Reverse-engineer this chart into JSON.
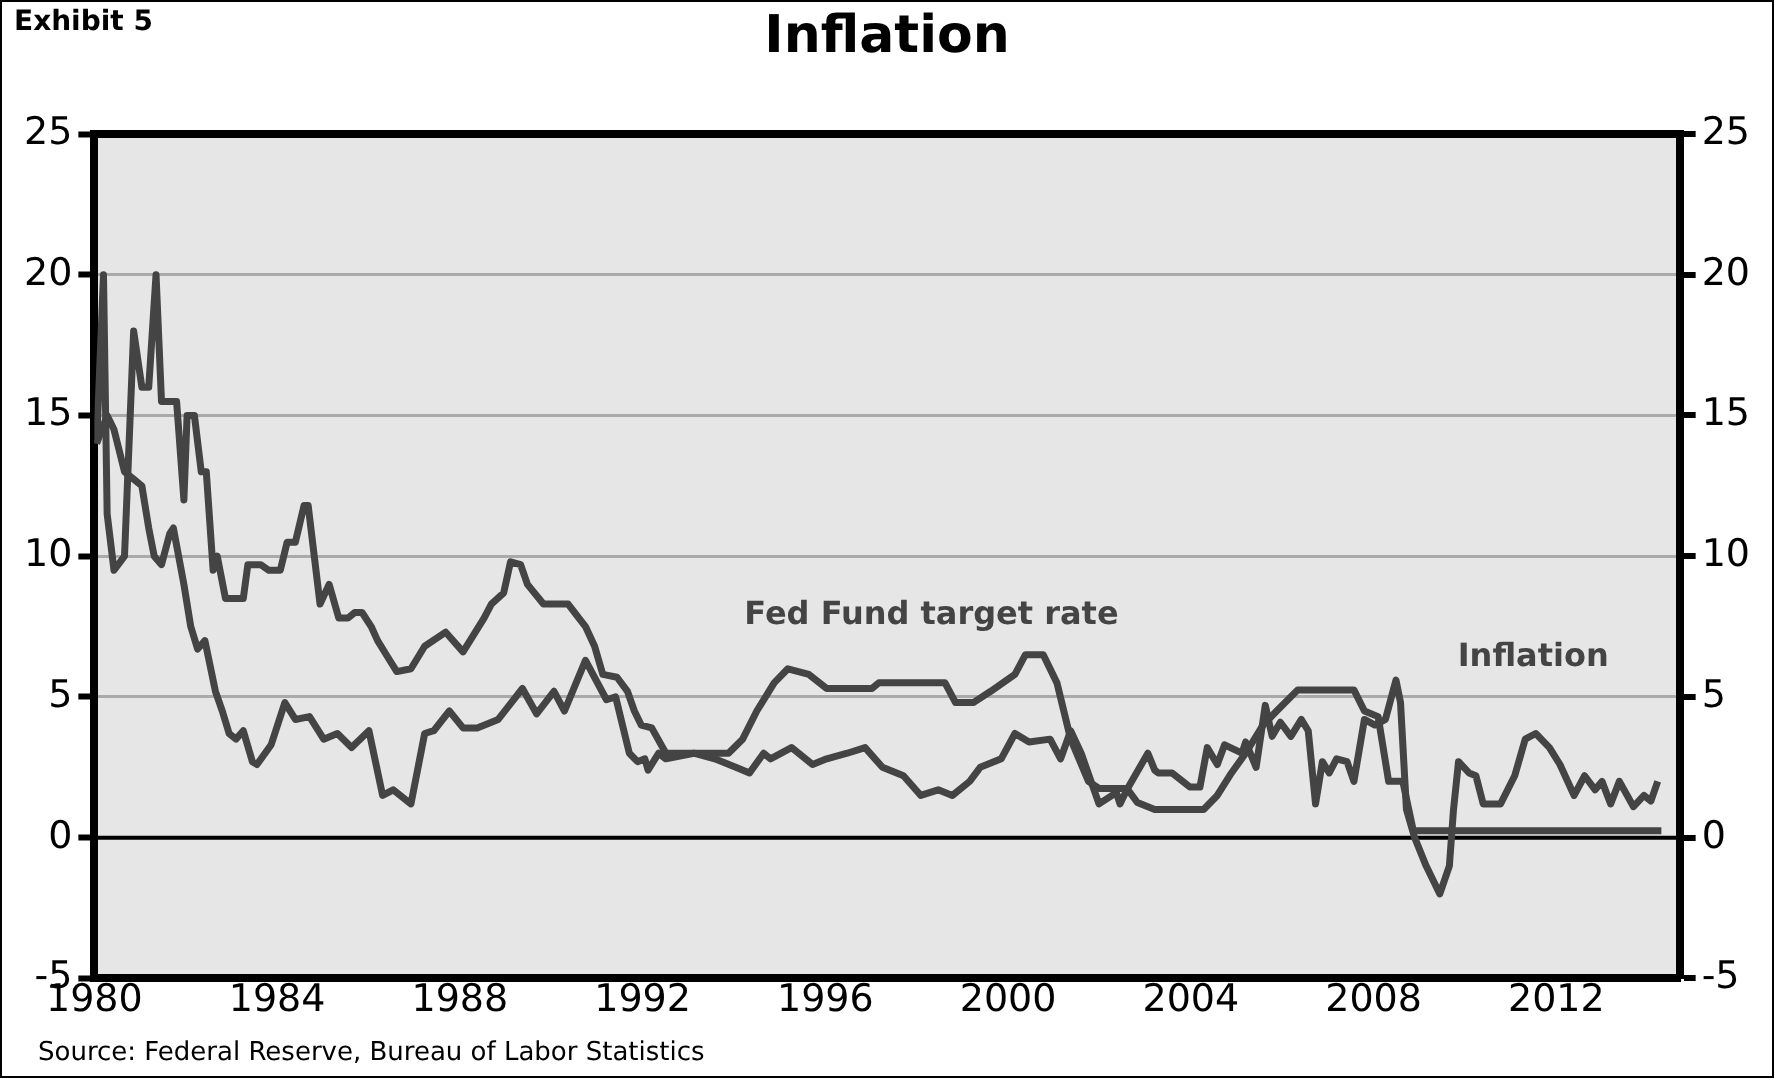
{
  "chart_data": {
    "type": "line",
    "title": "Inflation",
    "annotations": [
      "Exhibit 5",
      "Source:  Federal Reserve, Bureau of Labor Statistics"
    ],
    "xlim": [
      1980,
      2014.7
    ],
    "xticks": [
      1980,
      1984,
      1988,
      1992,
      1996,
      2000,
      2004,
      2008,
      2012
    ],
    "ylim": [
      -5,
      25
    ],
    "yticks": [
      -5,
      0,
      5,
      10,
      15,
      20,
      25
    ],
    "y2lim": [
      -5,
      25
    ],
    "y2ticks": [
      -5,
      0,
      5,
      10,
      15,
      20,
      25
    ],
    "grid": "y",
    "legend": false,
    "marker": "none",
    "line_style": "solid",
    "ref_lines": [
      {
        "axis": "y",
        "value": 0,
        "color": "#000000"
      }
    ],
    "series": [
      {
        "name": "Fed Fund target rate",
        "color": "#444444",
        "x": [
          1980.05,
          1980.2,
          1980.28,
          1980.43,
          1980.66,
          1980.86,
          1981.04,
          1981.19,
          1981.35,
          1981.47,
          1981.8,
          1981.96,
          1982.03,
          1982.19,
          1982.34,
          1982.45,
          1982.6,
          1982.69,
          1982.87,
          1983.26,
          1983.36,
          1983.64,
          1983.82,
          1984.07,
          1984.22,
          1984.4,
          1984.59,
          1984.68,
          1984.94,
          1985.14,
          1985.35,
          1985.55,
          1985.7,
          1985.86,
          1986.06,
          1986.2,
          1986.39,
          1986.62,
          1986.93,
          1987.23,
          1987.69,
          1988.07,
          1988.53,
          1988.69,
          1988.96,
          1989.11,
          1989.33,
          1989.48,
          1989.83,
          1990.37,
          1990.75,
          1990.95,
          1991.13,
          1991.44,
          1991.67,
          1991.82,
          1991.97,
          1992.2,
          1992.51,
          1993.88,
          1994.19,
          1994.5,
          1994.88,
          1995.18,
          1995.64,
          1996.03,
          1997.02,
          1997.17,
          1998.62,
          1998.85,
          1999.24,
          1999.62,
          2000.15,
          2000.38,
          2000.77,
          2001.07,
          2001.37,
          2001.76,
          2001.99,
          2002.6,
          2002.83,
          2003.21,
          2004.28,
          2004.58,
          2004.89,
          2005.2,
          2005.58,
          2005.88,
          2006.34,
          2007.57,
          2007.8,
          2008.1,
          2008.33,
          2008.64,
          2008.87,
          2014.3
        ],
        "values": [
          14,
          20,
          11.5,
          9.5,
          10,
          18,
          16,
          16,
          20,
          15.5,
          15.5,
          12,
          15,
          15,
          13,
          13,
          9.5,
          10,
          8.5,
          8.5,
          9.7,
          9.7,
          9.5,
          9.5,
          10.5,
          10.5,
          11.8,
          11.8,
          8.3,
          9,
          7.8,
          7.8,
          8,
          8,
          7.5,
          7,
          6.5,
          5.9,
          6,
          6.8,
          7.3,
          6.6,
          7.8,
          8.3,
          8.7,
          9.8,
          9.7,
          9,
          8.3,
          8.3,
          7.5,
          6.8,
          5.8,
          5.7,
          5.2,
          4.5,
          4,
          3.9,
          3,
          3,
          3.5,
          4.5,
          5.5,
          6,
          5.8,
          5.3,
          5.3,
          5.5,
          5.5,
          4.8,
          4.8,
          5.2,
          5.8,
          6.5,
          6.5,
          5.5,
          3.5,
          2,
          1.75,
          1.75,
          1.25,
          1,
          1,
          1.5,
          2.3,
          3,
          4,
          4.5,
          5.25,
          5.25,
          4.5,
          4.3,
          2,
          2,
          0.25,
          0.25
        ]
      },
      {
        "name": "Inflation",
        "color": "#444444",
        "x": [
          1980.05,
          1980.28,
          1980.43,
          1980.66,
          1980.89,
          1981.04,
          1981.19,
          1981.31,
          1981.47,
          1981.65,
          1981.73,
          1981.96,
          1982.11,
          1982.26,
          1982.42,
          1982.65,
          1982.8,
          1982.95,
          1983.1,
          1983.26,
          1983.46,
          1983.56,
          1983.87,
          1984.17,
          1984.4,
          1984.71,
          1985.02,
          1985.32,
          1985.63,
          1986.01,
          1986.31,
          1986.54,
          1986.93,
          1987.23,
          1987.43,
          1987.77,
          1988.07,
          1988.38,
          1988.84,
          1989.37,
          1989.68,
          1990.06,
          1990.29,
          1990.75,
          1991.21,
          1991.41,
          1991.71,
          1991.89,
          1992.05,
          1992.12,
          1992.35,
          1992.51,
          1993.12,
          1993.58,
          1994.04,
          1994.34,
          1994.65,
          1994.8,
          1995.26,
          1995.72,
          1996.03,
          1996.48,
          1996.87,
          1997.25,
          1997.71,
          1998.09,
          1998.47,
          1998.78,
          1999.16,
          1999.39,
          1999.85,
          2000.15,
          2000.46,
          2000.92,
          2001.15,
          2001.37,
          2001.6,
          2001.99,
          2002.37,
          2002.45,
          2002.6,
          2003.06,
          2003.21,
          2003.29,
          2003.59,
          2003.98,
          2004.2,
          2004.36,
          2004.58,
          2004.74,
          2005.12,
          2005.2,
          2005.43,
          2005.63,
          2005.78,
          2005.96,
          2006.19,
          2006.42,
          2006.57,
          2006.73,
          2006.88,
          2007.03,
          2007.19,
          2007.42,
          2007.57,
          2007.8,
          2008.03,
          2008.26,
          2008.49,
          2008.59,
          2008.72,
          2008.9,
          2009.15,
          2009.45,
          2009.66,
          2009.75,
          2009.86,
          2010.09,
          2010.24,
          2010.4,
          2010.78,
          2011.09,
          2011.32,
          2011.55,
          2011.85,
          2012.08,
          2012.39,
          2012.62,
          2012.85,
          2013.0,
          2013.19,
          2013.38,
          2013.69,
          2013.92,
          2014.07,
          2014.22
        ],
        "values": [
          14,
          15,
          14.5,
          13,
          12.7,
          12.5,
          11,
          10,
          9.7,
          10.8,
          11,
          9,
          7.5,
          6.7,
          7,
          5.2,
          4.5,
          3.7,
          3.5,
          3.8,
          2.7,
          2.6,
          3.3,
          4.8,
          4.2,
          4.3,
          3.5,
          3.7,
          3.2,
          3.8,
          1.5,
          1.7,
          1.2,
          3.7,
          3.8,
          4.5,
          3.9,
          3.9,
          4.2,
          5.3,
          4.4,
          5.2,
          4.5,
          6.3,
          4.9,
          5,
          3,
          2.7,
          2.8,
          2.4,
          3,
          2.8,
          3,
          2.8,
          2.5,
          2.3,
          3,
          2.8,
          3.2,
          2.6,
          2.8,
          3,
          3.2,
          2.5,
          2.2,
          1.5,
          1.7,
          1.5,
          2,
          2.5,
          2.8,
          3.7,
          3.4,
          3.5,
          2.8,
          3.8,
          3,
          1.2,
          1.6,
          1.2,
          1.7,
          3,
          2.4,
          2.3,
          2.3,
          1.8,
          1.8,
          3.2,
          2.6,
          3.3,
          3,
          3.4,
          2.5,
          4.7,
          3.6,
          4.1,
          3.6,
          4.2,
          3.8,
          1.2,
          2.7,
          2.3,
          2.8,
          2.7,
          2,
          4.2,
          4,
          4.2,
          5.6,
          4.8,
          1,
          0,
          -1,
          -2,
          -1,
          1,
          2.7,
          2.3,
          2.2,
          1.2,
          1.2,
          2.2,
          3.5,
          3.7,
          3.2,
          2.6,
          1.5,
          2.2,
          1.7,
          2,
          1.2,
          2,
          1.1,
          1.5,
          1.3,
          2
        ]
      }
    ]
  }
}
